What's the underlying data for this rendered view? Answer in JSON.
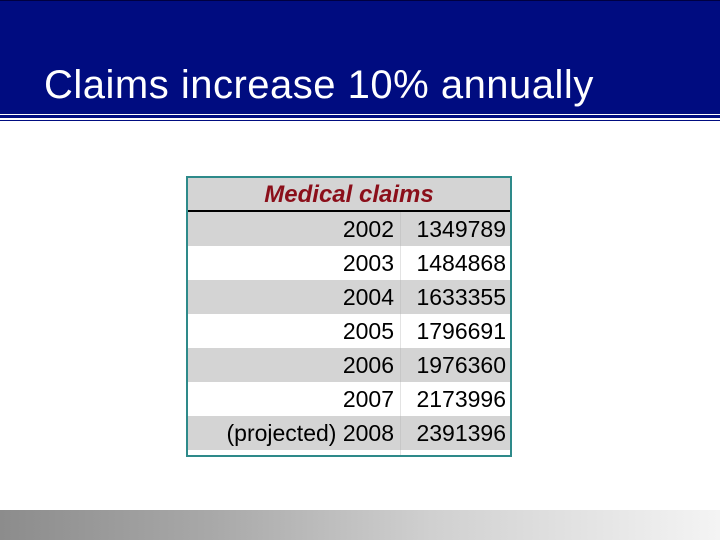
{
  "slide": {
    "title": "Claims increase 10% annually"
  },
  "table": {
    "header": "Medical claims",
    "rows": [
      {
        "year": "2002",
        "value": "1349789"
      },
      {
        "year": "2003",
        "value": "1484868"
      },
      {
        "year": "2004",
        "value": "1633355"
      },
      {
        "year": "2005",
        "value": "1796691"
      },
      {
        "year": "2006",
        "value": "1976360"
      },
      {
        "year": "2007",
        "value": "2173996"
      },
      {
        "year": "(projected) 2008",
        "value": "2391396"
      }
    ]
  },
  "colors": {
    "title_bar": "#000c80",
    "title_text": "#ffffff",
    "table_header_text": "#8b0f1a",
    "table_border": "#2e8a8a",
    "row_shade": "#d4d4d4"
  }
}
